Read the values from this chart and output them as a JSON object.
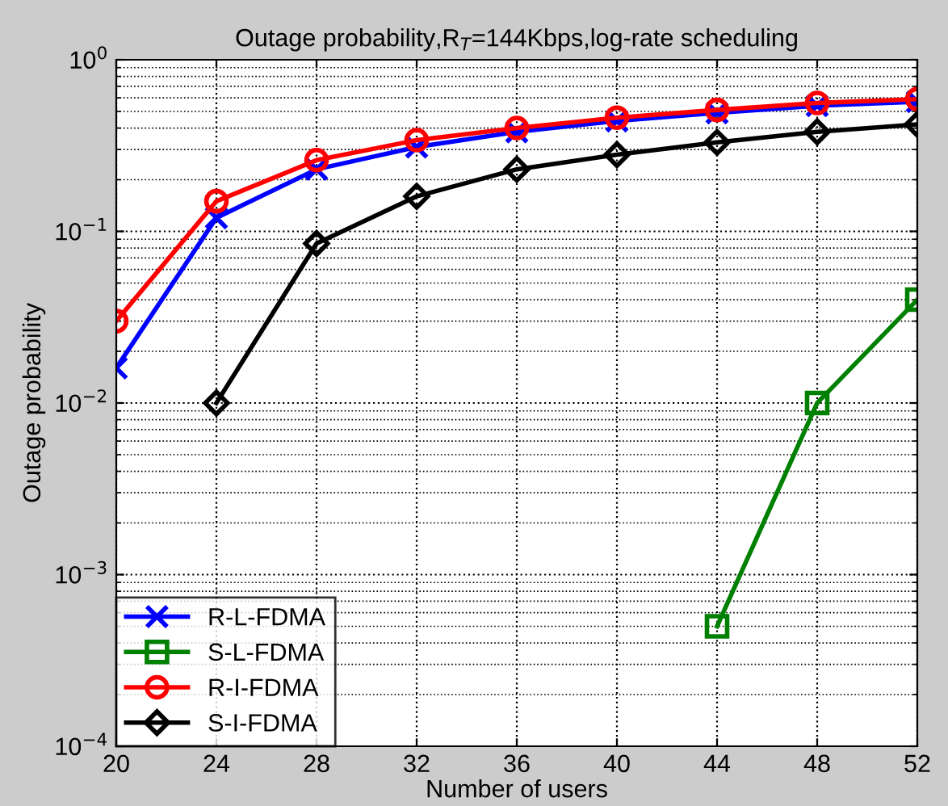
{
  "chart_data": {
    "type": "line",
    "title": "Outage probability,R$_{T}$=144Kbps,log-rate scheduling",
    "xlabel": "Number of users",
    "ylabel": "Outage probability",
    "x": [
      20,
      24,
      28,
      32,
      36,
      40,
      44,
      48,
      52
    ],
    "series": [
      {
        "name": "R-L-FDMA",
        "color": "#0000ff",
        "marker": "cross",
        "values": [
          0.016,
          0.12,
          0.23,
          0.31,
          0.38,
          0.44,
          0.49,
          0.54,
          0.57
        ]
      },
      {
        "name": "S-L-FDMA",
        "color": "#008000",
        "marker": "square",
        "values": [
          null,
          null,
          null,
          null,
          null,
          null,
          0.0005,
          0.01,
          0.04
        ]
      },
      {
        "name": "R-I-FDMA",
        "color": "#ff0000",
        "marker": "circle",
        "values": [
          0.03,
          0.15,
          0.26,
          0.34,
          0.4,
          0.46,
          0.51,
          0.56,
          0.59
        ]
      },
      {
        "name": "S-I-FDMA",
        "color": "#000000",
        "marker": "diamond",
        "values": [
          null,
          0.01,
          0.085,
          0.16,
          0.23,
          0.28,
          0.33,
          0.38,
          0.42
        ]
      }
    ],
    "log": "y",
    "xlim": [
      20,
      52
    ],
    "ylim": [
      0.0001,
      1
    ],
    "xticks": [
      20,
      24,
      28,
      32,
      36,
      40,
      44,
      48,
      52
    ],
    "yticks": [
      {
        "value": 0.0001,
        "label": "10$^{−4}$"
      },
      {
        "value": 0.001,
        "label": "10$^{−3}$"
      },
      {
        "value": 0.01,
        "label": "10$^{−2}$"
      },
      {
        "value": 0.1,
        "label": "10$^{−1}$"
      },
      {
        "value": 1,
        "label": "10$^{0}$"
      }
    ],
    "grid": true,
    "legend": "bottom left",
    "line_style": "solid"
  }
}
